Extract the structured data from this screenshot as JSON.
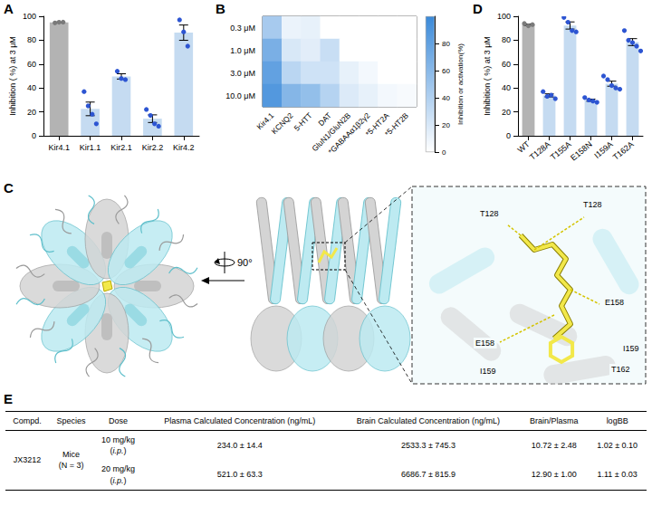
{
  "chart_data": [
    {
      "panel": "A",
      "type": "bar",
      "ylabel": "Inhibition ( %) at 3 μM",
      "categories": [
        "Kir4.1",
        "Kir1.1",
        "Kir2.1",
        "Kir2.2",
        "Kir4.2"
      ],
      "values": [
        94.9,
        22.5,
        49.7,
        14.3,
        86.3
      ],
      "errors": [
        0.3,
        5.7,
        2.2,
        3.2,
        6.4
      ],
      "points": [
        [
          94.5,
          95.0,
          95.1
        ],
        [
          37,
          25,
          18,
          10
        ],
        [
          54,
          48,
          47
        ],
        [
          22,
          17,
          10,
          8
        ],
        [
          97,
          87,
          75
        ]
      ],
      "colors": [
        "#b3b3b3",
        "#c5dbf1",
        "#c5dbf1",
        "#c5dbf1",
        "#c5dbf1"
      ],
      "ylim": [
        0,
        100
      ],
      "yticks": [
        0,
        20,
        40,
        60,
        80,
        100
      ],
      "grid": false
    },
    {
      "panel": "B",
      "type": "heatmap",
      "categories": [
        "Kir4.1",
        "KCNQ2",
        "5-HTT",
        "DAT",
        "GluN1/GluN2B",
        "*GABAAα1β2γ2",
        "*5-HT2A",
        "*5-HT2B"
      ],
      "rows": [
        "0.3 μM",
        "1.0 μM",
        "3.0 μM",
        "10.0 μM"
      ],
      "cells": [
        [
          45,
          10,
          12,
          0,
          0,
          0,
          0,
          0
        ],
        [
          68,
          20,
          15,
          28,
          0,
          0,
          0,
          0
        ],
        [
          80,
          35,
          25,
          25,
          12,
          6,
          0,
          0
        ],
        [
          88,
          62,
          55,
          38,
          18,
          12,
          6,
          4
        ]
      ],
      "colorbar": {
        "label": "Inhibition or activation(%)",
        "range": [
          0,
          100
        ],
        "ticks": [
          0,
          20,
          40,
          60,
          80
        ],
        "colors": [
          "#ffffff",
          "#3b8ad9"
        ]
      }
    },
    {
      "panel": "D",
      "type": "bar",
      "ylabel": "Inhibition ( %) at 3 μM",
      "categories": [
        "WT",
        "T128A",
        "T155A",
        "E158N",
        "I159A",
        "T162A"
      ],
      "values": [
        93.0,
        33.8,
        92.3,
        29.8,
        43.6,
        78.4
      ],
      "errors": [
        0.6,
        1.3,
        3.0,
        0.9,
        2.1,
        2.9
      ],
      "points": [
        [
          94,
          92,
          93
        ],
        [
          37,
          33,
          34,
          31
        ],
        [
          99,
          95,
          88,
          87
        ],
        [
          32,
          30,
          29,
          28
        ],
        [
          50,
          47,
          42,
          40,
          39
        ],
        [
          88,
          80,
          78,
          75,
          71
        ]
      ],
      "colors": [
        "#b3b3b3",
        "#c5dbf1",
        "#c5dbf1",
        "#c5dbf1",
        "#c5dbf1",
        "#c5dbf1"
      ],
      "ylim": [
        0,
        100
      ],
      "yticks": [
        0,
        20,
        40,
        60,
        80,
        100
      ],
      "grid": false
    }
  ],
  "structure": {
    "panel": "C",
    "rotation": "90°",
    "residues": [
      "T128",
      "T128",
      "E158",
      "E158",
      "I159",
      "I159",
      "T162"
    ]
  },
  "table": {
    "panel": "E",
    "header": [
      "Compd.",
      "Species",
      "Dose",
      "Plasma Calculated Concentration (ng/mL)",
      "Brain Calculated Concentration (ng/mL)",
      "Brain/Plasma",
      "logBB"
    ],
    "rows": [
      {
        "compound": "JX3212",
        "species": [
          "Mice",
          "(N = 3)"
        ],
        "doses": [
          {
            "dose": [
              "10 mg/kg",
              "(i.p.)"
            ],
            "values": [
              "234.0 ± 14.4",
              "2533.3 ± 745.3",
              "10.72 ± 2.48",
              "1.02 ± 0.10"
            ]
          },
          {
            "dose": [
              "20 mg/kg",
              "(i.p.)"
            ],
            "values": [
              "521.0 ± 63.3",
              "6686.7 ± 815.9",
              "12.90 ± 1.00",
              "1.11 ± 0.03"
            ]
          }
        ]
      }
    ]
  }
}
